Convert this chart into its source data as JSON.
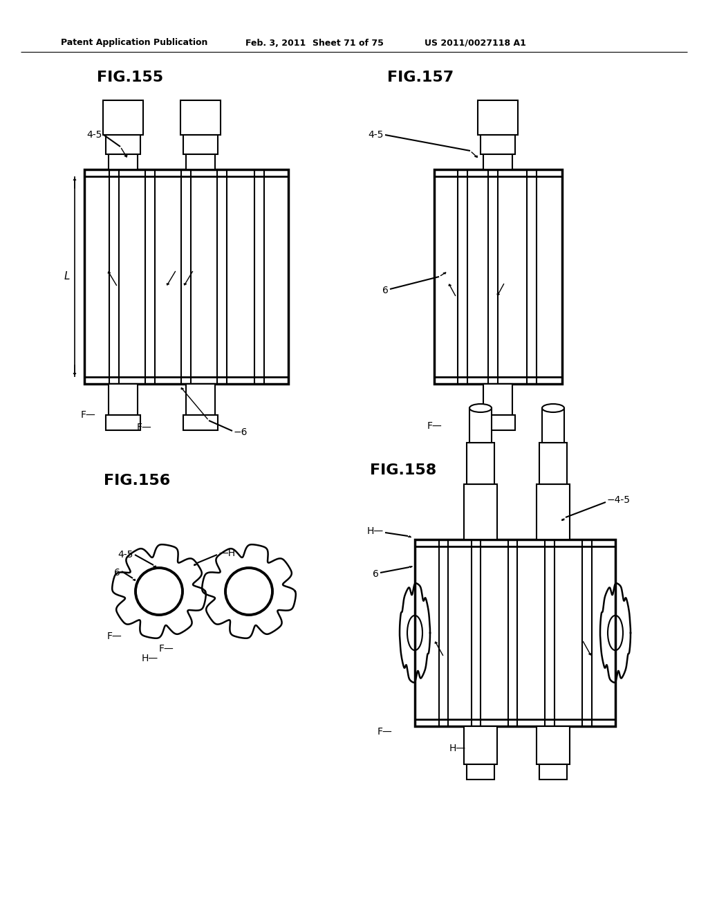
{
  "bg": "#ffffff",
  "lc": "#000000",
  "header_left": "Patent Application Publication",
  "header_mid1": "Feb. 3, 2011",
  "header_mid2": "Sheet 71 of 75",
  "header_right": "US 2011/0027118 A1",
  "fig155": "FIG.155",
  "fig156": "FIG.156",
  "fig157": "FIG.157",
  "fig158": "FIG.158"
}
